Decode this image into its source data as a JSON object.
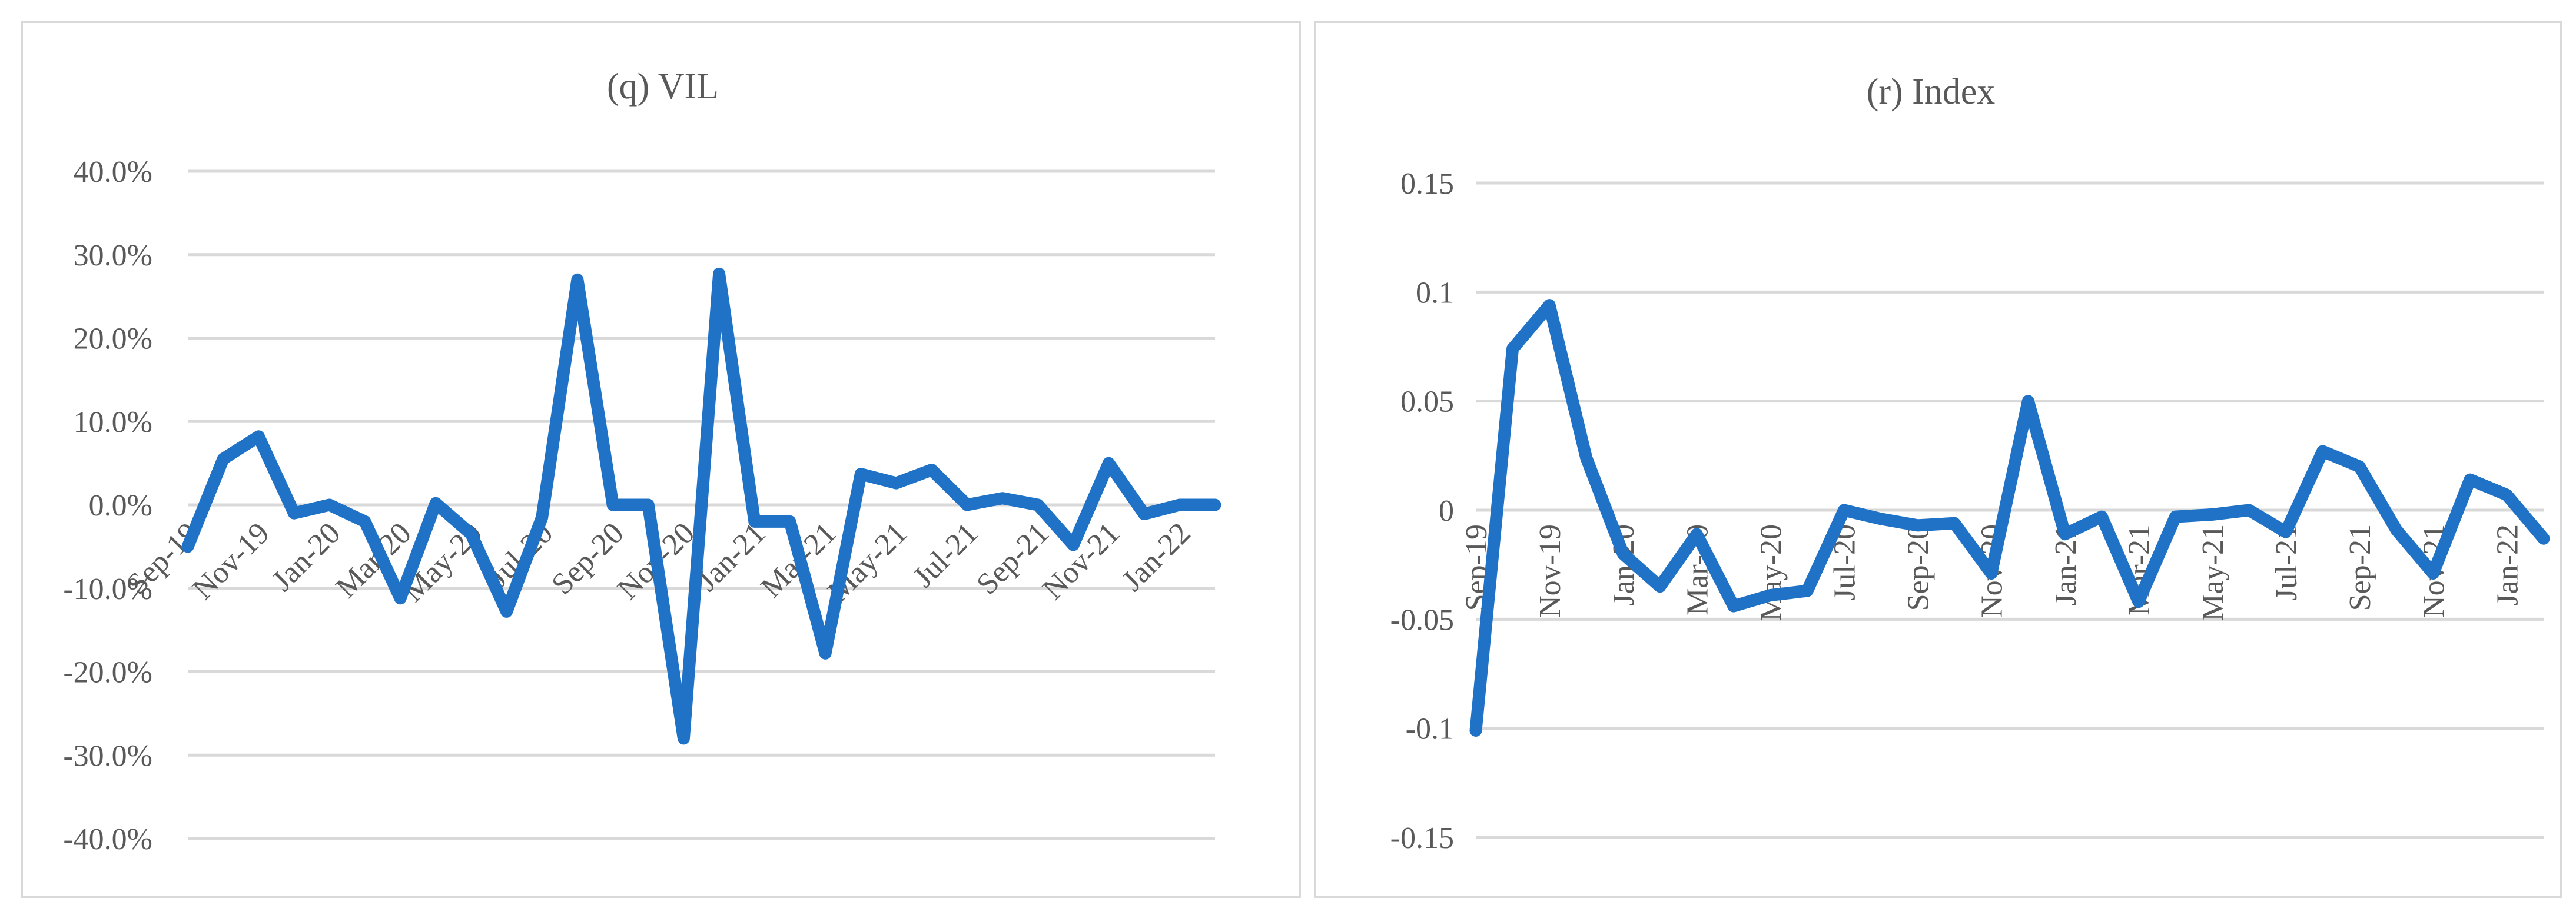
{
  "colors": {
    "series": "#1f72c6",
    "grid": "#d9d9d9",
    "text": "#595959"
  },
  "chart_data": [
    {
      "type": "line",
      "title": "(q) VIL",
      "xlabel": "",
      "ylabel": "",
      "ylim": [
        -0.4,
        0.4
      ],
      "y_ticks": [
        0.4,
        0.3,
        0.2,
        0.1,
        0.0,
        -0.1,
        -0.2,
        -0.3,
        -0.4
      ],
      "y_tick_labels": [
        "40.0%",
        "30.0%",
        "20.0%",
        "10.0%",
        "0.0%",
        "-10.0%",
        "-20.0%",
        "-30.0%",
        "-40.0%"
      ],
      "x_ticks": [
        "Sep-19",
        "Nov-19",
        "Jan-20",
        "Mar-20",
        "May-20",
        "Jul-20",
        "Sep-20",
        "Nov-20",
        "Jan-21",
        "Mar-21",
        "May-21",
        "Jul-21",
        "Sep-21",
        "Nov-21",
        "Jan-22"
      ],
      "grid": true,
      "legend": "none",
      "series": [
        {
          "x": [
            "Sep-19",
            "Oct-19",
            "Nov-19",
            "Dec-19",
            "Jan-20",
            "Feb-20",
            "Mar-20",
            "Apr-20",
            "May-20",
            "Jun-20",
            "Jul-20",
            "Aug-20",
            "Sep-20",
            "Oct-20",
            "Nov-20",
            "Dec-20",
            "Jan-21",
            "Feb-21",
            "Mar-21",
            "Apr-21",
            "May-21",
            "Jun-21",
            "Jul-21",
            "Aug-21",
            "Sep-21",
            "Oct-21",
            "Nov-21",
            "Dec-21",
            "Jan-22",
            "Feb-22"
          ],
          "values": [
            -0.05,
            0.055,
            0.082,
            -0.01,
            0.0,
            -0.02,
            -0.112,
            0.002,
            -0.035,
            -0.128,
            -0.015,
            0.27,
            0.0,
            0.0,
            -0.28,
            0.277,
            -0.02,
            -0.02,
            -0.178,
            0.037,
            0.026,
            0.042,
            0.0,
            0.008,
            0.0,
            -0.048,
            0.05,
            -0.011,
            0.0,
            0.0
          ]
        }
      ]
    },
    {
      "type": "line",
      "title": "(r) Index",
      "xlabel": "",
      "ylabel": "",
      "ylim": [
        -0.15,
        0.15
      ],
      "y_ticks": [
        0.15,
        0.1,
        0.05,
        0.0,
        -0.05,
        -0.1,
        -0.15
      ],
      "y_tick_labels": [
        "0.15",
        "0.1",
        "0.05",
        "0",
        "-0.05",
        "-0.1",
        "-0.15"
      ],
      "x_ticks": [
        "Sep-19",
        "Nov-19",
        "Jan-20",
        "Mar-20",
        "May-20",
        "Jul-20",
        "Sep-20",
        "Nov-20",
        "Jan-21",
        "Mar-21",
        "May-21",
        "Jul-21",
        "Sep-21",
        "Nov-21",
        "Jan-22"
      ],
      "grid": true,
      "legend": "none",
      "series": [
        {
          "x": [
            "Sep-19",
            "Oct-19",
            "Nov-19",
            "Dec-19",
            "Jan-20",
            "Feb-20",
            "Mar-20",
            "Apr-20",
            "May-20",
            "Jun-20",
            "Jul-20",
            "Aug-20",
            "Sep-20",
            "Oct-20",
            "Nov-20",
            "Dec-20",
            "Jan-21",
            "Feb-21",
            "Mar-21",
            "Apr-21",
            "May-21",
            "Jun-21",
            "Jul-21",
            "Aug-21",
            "Sep-21",
            "Oct-21",
            "Nov-21",
            "Dec-21",
            "Jan-22",
            "Feb-22"
          ],
          "values": [
            -0.101,
            0.074,
            0.094,
            0.024,
            -0.02,
            -0.035,
            -0.011,
            -0.044,
            -0.039,
            -0.037,
            0.0,
            -0.004,
            -0.007,
            -0.006,
            -0.029,
            0.05,
            -0.011,
            -0.003,
            -0.042,
            -0.003,
            -0.002,
            0.0,
            -0.01,
            0.027,
            0.02,
            -0.009,
            -0.029,
            0.014,
            0.007,
            -0.013
          ]
        }
      ]
    }
  ]
}
